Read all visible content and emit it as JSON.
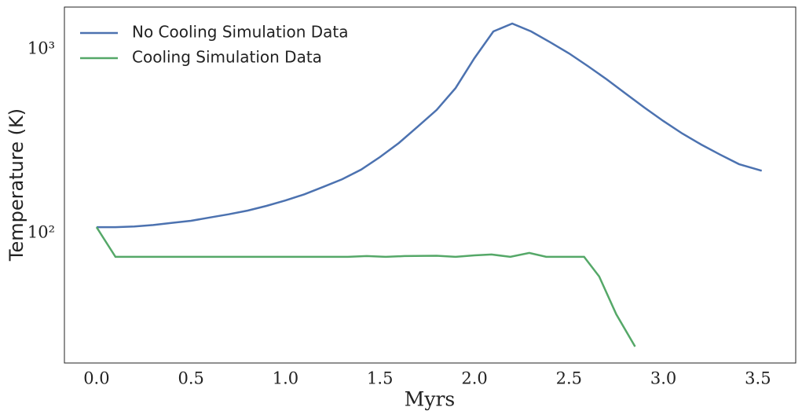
{
  "chart_data": {
    "type": "line",
    "xlabel": "Myrs",
    "ylabel": "Temperature (K)",
    "xlim": [
      -0.17,
      3.7
    ],
    "ylim": [
      19.7,
      1702
    ],
    "yscale": "log",
    "grid": false,
    "legend": "upper left",
    "xticks": [
      {
        "value": 0,
        "label": "0.0"
      },
      0.5,
      {
        "value": 1,
        "label": "1.0"
      },
      1.5,
      {
        "value": 2,
        "label": "2.0"
      },
      2.5,
      {
        "value": 3,
        "label": "3.0"
      },
      3.5
    ],
    "yticks": [
      {
        "value": 100,
        "label": "10²"
      },
      {
        "value": 1000,
        "label": "10³"
      }
    ],
    "series": [
      {
        "name": "No Cooling Simulation Data",
        "color": "#4c72b0",
        "x": [
          0,
          0.1,
          0.2,
          0.3,
          0.4,
          0.5,
          0.6,
          0.7,
          0.8,
          0.9,
          1.0,
          1.1,
          1.2,
          1.3,
          1.4,
          1.5,
          1.6,
          1.7,
          1.8,
          1.9,
          2.0,
          2.1,
          2.2,
          2.3,
          2.4,
          2.5,
          2.6,
          2.7,
          2.8,
          2.9,
          3.0,
          3.1,
          3.2,
          3.3,
          3.4,
          3.52
        ],
        "values": [
          108,
          108,
          109,
          111,
          114,
          117,
          122,
          127,
          133,
          141,
          151,
          163,
          179,
          197,
          222,
          260,
          310,
          381,
          469,
          617,
          898,
          1254,
          1384,
          1254,
          1096,
          953,
          813,
          688,
          576,
          483,
          408,
          349,
          304,
          268,
          238,
          219
        ]
      },
      {
        "name": "Cooling Simulation Data",
        "color": "#55a868",
        "x": [
          0,
          0.1,
          0.2,
          0.3,
          0.4,
          0.5,
          0.6,
          0.7,
          0.8,
          0.9,
          1.0,
          1.1,
          1.2,
          1.33,
          1.43,
          1.53,
          1.63,
          1.8,
          1.9,
          2.0,
          2.09,
          2.19,
          2.29,
          2.38,
          2.58,
          2.66,
          2.75,
          2.85
        ],
        "values": [
          108,
          74.5,
          74.5,
          74.5,
          74.5,
          74.5,
          74.5,
          74.5,
          74.5,
          74.5,
          74.5,
          74.5,
          74.5,
          74.5,
          75.2,
          74.5,
          75.2,
          75.5,
          74.5,
          75.9,
          76.7,
          74.5,
          78.2,
          74.5,
          74.5,
          58.2,
          36.3,
          24.2
        ]
      }
    ]
  }
}
